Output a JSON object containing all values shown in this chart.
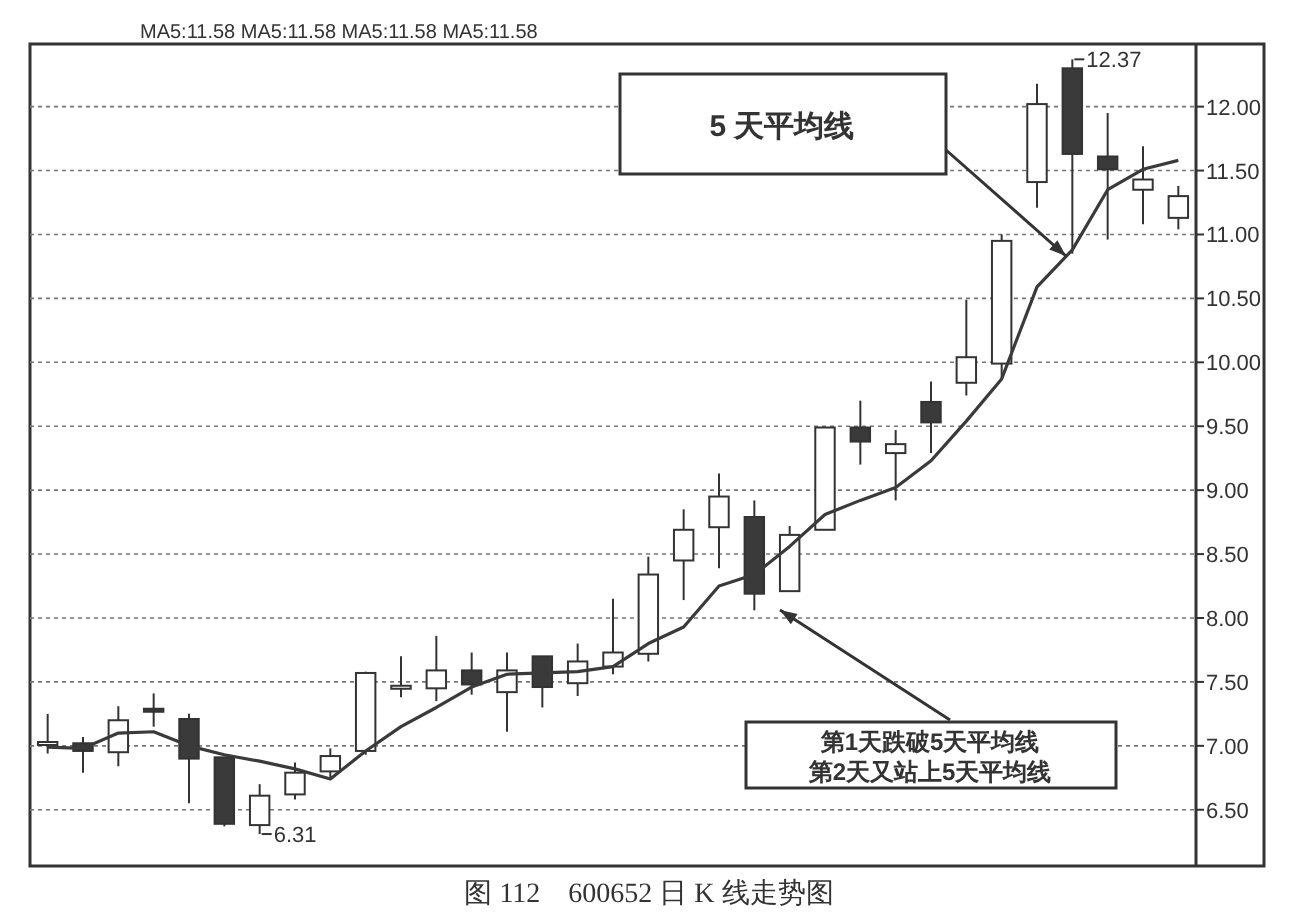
{
  "chart_data": {
    "type": "candlestick",
    "categories": [
      null,
      null,
      null,
      null,
      null,
      null,
      null,
      null,
      null,
      null,
      null,
      null,
      null,
      null,
      null,
      null,
      null,
      null,
      null,
      null,
      null,
      null,
      null,
      null,
      null,
      null,
      null,
      null,
      null,
      null,
      null,
      null,
      null
    ],
    "ohlc": [
      [
        7.01,
        7.25,
        6.94,
        7.03
      ],
      [
        7.02,
        7.07,
        6.79,
        6.96
      ],
      [
        6.95,
        7.31,
        6.84,
        7.2
      ],
      [
        7.29,
        7.41,
        7.15,
        7.27
      ],
      [
        7.21,
        7.25,
        6.55,
        6.9
      ],
      [
        6.91,
        6.91,
        6.37,
        6.39
      ],
      [
        6.38,
        6.7,
        6.31,
        6.61
      ],
      [
        6.62,
        6.87,
        6.58,
        6.79
      ],
      [
        6.8,
        6.98,
        6.75,
        6.92
      ],
      [
        6.96,
        7.58,
        6.93,
        7.57
      ],
      [
        7.45,
        7.7,
        7.38,
        7.47
      ],
      [
        7.45,
        7.86,
        7.35,
        7.59
      ],
      [
        7.59,
        7.73,
        7.4,
        7.48
      ],
      [
        7.42,
        7.73,
        7.11,
        7.59
      ],
      [
        7.7,
        7.7,
        7.3,
        7.46
      ],
      [
        7.49,
        7.8,
        7.39,
        7.66
      ],
      [
        7.62,
        8.15,
        7.56,
        7.73
      ],
      [
        7.72,
        8.48,
        7.66,
        8.34
      ],
      [
        8.45,
        8.85,
        8.14,
        8.69
      ],
      [
        8.71,
        9.13,
        8.39,
        8.95
      ],
      [
        8.79,
        8.92,
        8.06,
        8.19
      ],
      [
        8.21,
        8.72,
        8.21,
        8.65
      ],
      [
        8.69,
        9.49,
        8.69,
        9.49
      ],
      [
        9.49,
        9.7,
        9.2,
        9.38
      ],
      [
        9.29,
        9.47,
        8.92,
        9.36
      ],
      [
        9.69,
        9.85,
        9.29,
        9.53
      ],
      [
        9.84,
        10.49,
        9.74,
        10.04
      ],
      [
        9.99,
        11.0,
        9.87,
        10.95
      ],
      [
        11.41,
        12.18,
        11.21,
        12.02
      ],
      [
        12.3,
        12.37,
        10.85,
        11.63
      ],
      [
        11.61,
        11.95,
        10.96,
        11.51
      ],
      [
        11.35,
        11.69,
        11.08,
        11.43
      ],
      [
        11.13,
        11.38,
        11.04,
        11.3
      ]
    ],
    "series": [
      {
        "type": "line",
        "color": "#3a3a3a",
        "values": [
          6.99,
          6.98,
          7.1,
          7.11,
          7.0,
          6.93,
          6.88,
          6.82,
          6.74,
          6.96,
          7.15,
          7.3,
          7.46,
          7.56,
          7.57,
          7.58,
          7.62,
          7.8,
          7.93,
          8.25,
          8.34,
          8.56,
          8.81,
          8.92,
          9.02,
          9.23,
          9.54,
          9.87,
          10.59,
          10.88,
          11.35,
          11.51,
          11.58
        ]
      }
    ],
    "ylim": [
      6.06,
      12.49
    ],
    "yticks": [
      {
        "value": 6.5,
        "label": "6.50"
      },
      {
        "value": 7,
        "label": "7.00"
      },
      {
        "value": 7.5,
        "label": "7.50"
      },
      {
        "value": 8,
        "label": "8.00"
      },
      {
        "value": 8.5,
        "label": "8.50"
      },
      {
        "value": 9,
        "label": "9.00"
      },
      {
        "value": 9.5,
        "label": "9.50"
      },
      {
        "value": 10,
        "label": "10.00"
      },
      {
        "value": 10.5,
        "label": "10.50"
      },
      {
        "value": 11,
        "label": "11.00"
      },
      {
        "value": 11.5,
        "label": "11.50"
      },
      {
        "value": 12,
        "label": "12.00"
      }
    ],
    "grid": "y",
    "tick_labels": "y",
    "annotations": [
      "MA5:11.58 MA5:11.58 MA5:11.58 MA5:11.58",
      "12.37",
      "6.31",
      "5 天平均线",
      "第1天跌破5天平均线",
      "第2天又站上5天平均线",
      "图 112　600652 日 K 线走势图"
    ]
  }
}
